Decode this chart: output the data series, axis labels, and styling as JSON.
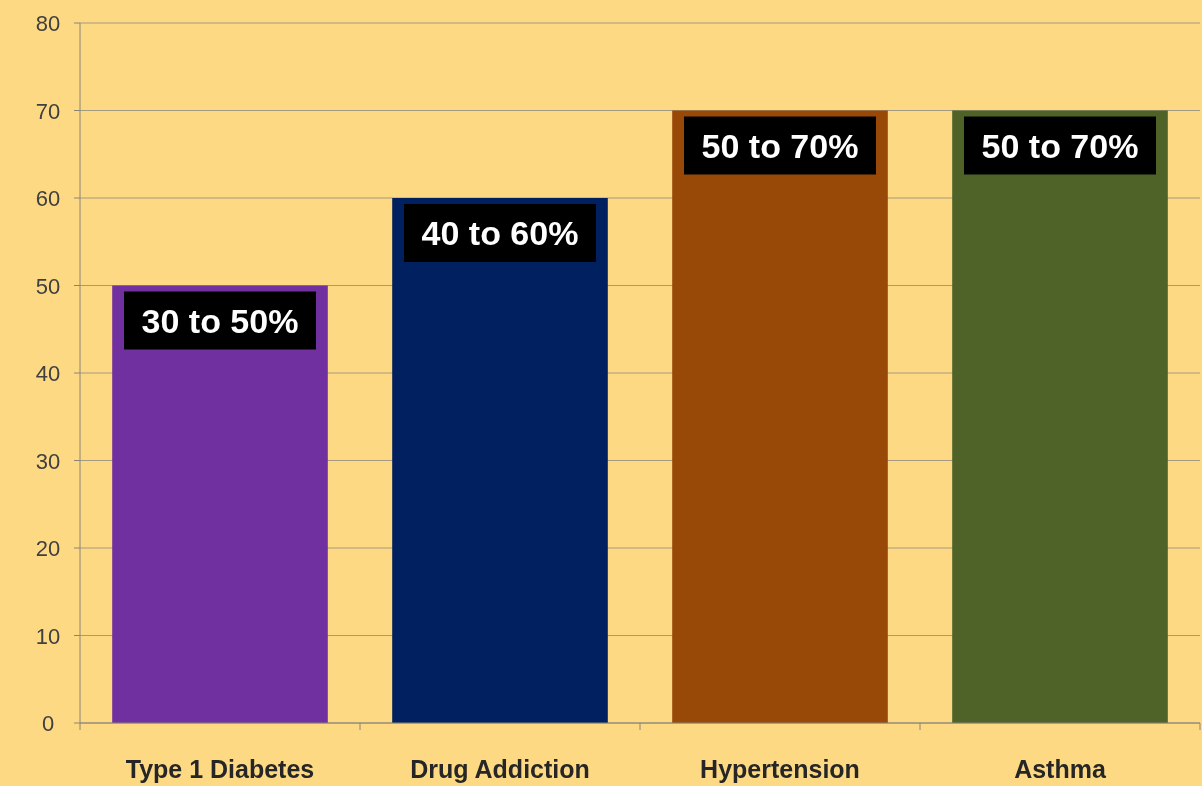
{
  "chart_data": {
    "type": "bar",
    "categories": [
      "Type 1 Diabetes",
      "Drug Addiction",
      "Hypertension",
      "Asthma"
    ],
    "values": [
      50,
      60,
      70,
      70
    ],
    "colors": [
      "#7030a0",
      "#002060",
      "#984807",
      "#4f6228"
    ],
    "value_labels": [
      "30 to 50%",
      "40 to 60%",
      "50 to 70%",
      "50 to 70%"
    ],
    "ylim": [
      0,
      80
    ],
    "yticks": [
      0,
      10,
      20,
      30,
      40,
      50,
      60,
      70,
      80
    ],
    "grid": "y"
  }
}
